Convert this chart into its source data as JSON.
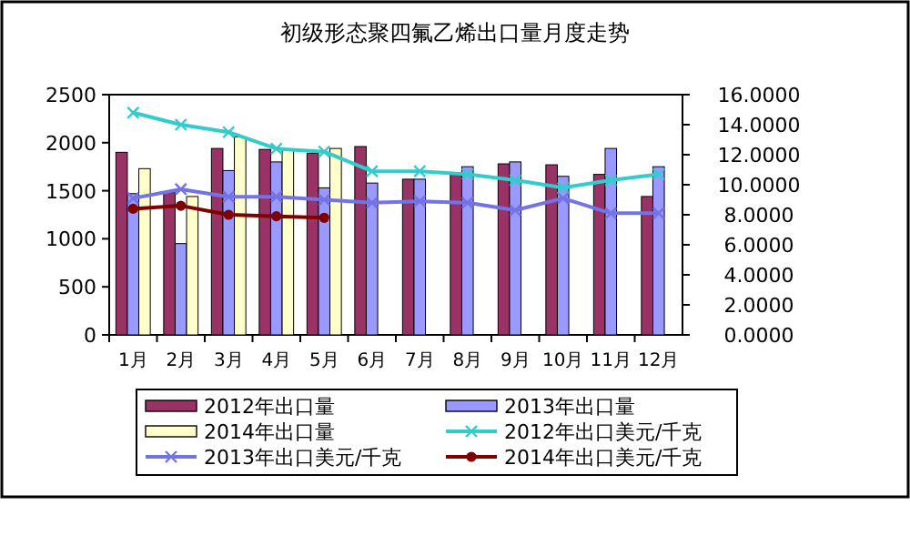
{
  "chart_data": {
    "type": "bar",
    "title": "初级形态聚四氟乙烯出口量月度走势",
    "categories": [
      "1月",
      "2月",
      "3月",
      "4月",
      "5月",
      "6月",
      "7月",
      "8月",
      "9月",
      "10月",
      "11月",
      "12月"
    ],
    "series": [
      {
        "name": "2012年出口量",
        "color": "#993366",
        "values": [
          1900,
          1480,
          1940,
          1930,
          1890,
          1960,
          1620,
          1670,
          1780,
          1770,
          1670,
          1440
        ]
      },
      {
        "name": "2013年出口量",
        "color": "#9999ff",
        "values": [
          1470,
          950,
          1710,
          1800,
          1530,
          1580,
          1620,
          1750,
          1800,
          1650,
          1940,
          1750
        ]
      },
      {
        "name": "2014年出口量",
        "color": "#ffffcc",
        "values": [
          1730,
          1440,
          2060,
          1930,
          1940,
          null,
          null,
          null,
          null,
          null,
          null,
          null
        ]
      },
      {
        "name": "2012年出口美元/千克",
        "type": "line",
        "axis": "y2",
        "color": "#33cccc",
        "marker": "cross",
        "values": [
          14.8,
          14.0,
          13.5,
          12.4,
          12.2,
          10.9,
          10.9,
          10.7,
          10.3,
          9.8,
          10.3,
          10.7
        ]
      },
      {
        "name": "2013年出口美元/千克",
        "type": "line",
        "axis": "y2",
        "color": "#7373e6",
        "marker": "cross",
        "values": [
          9.1,
          9.7,
          9.2,
          9.2,
          9.0,
          8.8,
          8.9,
          8.8,
          8.3,
          9.1,
          8.1,
          8.1
        ]
      },
      {
        "name": "2014年出口美元/千克",
        "type": "line",
        "axis": "y2",
        "color": "#800000",
        "marker": "circle",
        "values": [
          8.4,
          8.6,
          8.0,
          7.9,
          7.8,
          null,
          null,
          null,
          null,
          null,
          null,
          null
        ]
      }
    ],
    "ylim": [
      0,
      2500
    ],
    "yticks": [
      0,
      500,
      1000,
      1500,
      2000,
      2500
    ],
    "y2lim": [
      0,
      16
    ],
    "y2ticks": [
      {
        "value": 0,
        "label": "0.0000"
      },
      {
        "value": 2,
        "label": "2.0000"
      },
      {
        "value": 4,
        "label": "4.0000"
      },
      {
        "value": 6,
        "label": "6.0000"
      },
      {
        "value": 8,
        "label": "8.0000"
      },
      {
        "value": 10,
        "label": "10.0000"
      },
      {
        "value": 12,
        "label": "12.0000"
      },
      {
        "value": 14,
        "label": "14.0000"
      },
      {
        "value": 16,
        "label": "16.0000"
      }
    ],
    "grid": false,
    "legend": "bottom"
  }
}
